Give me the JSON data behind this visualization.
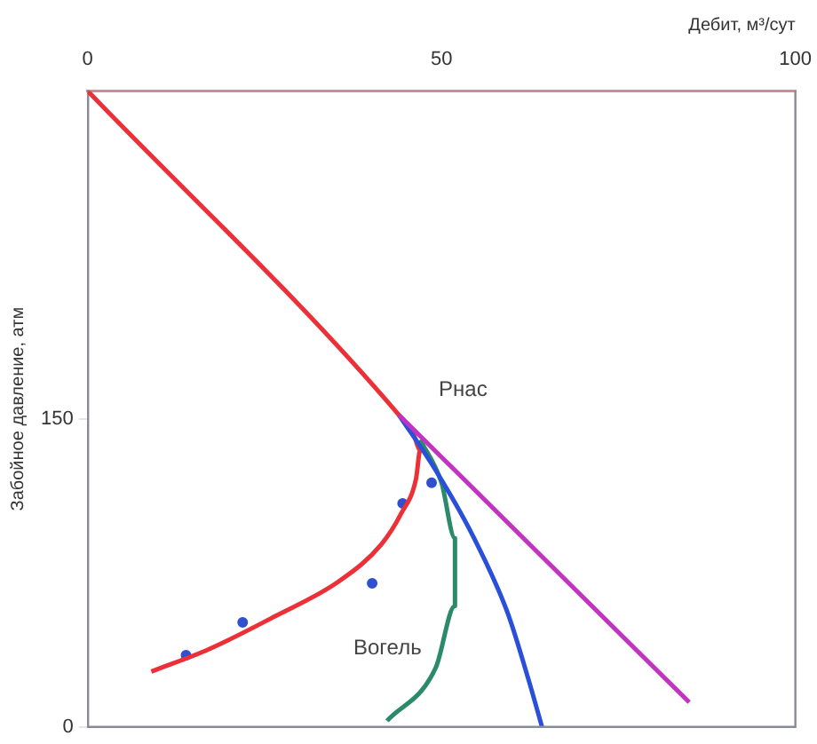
{
  "chart_data": {
    "type": "line",
    "xlabel": "Дебит, м³/сут",
    "ylabel": "Забойное давление, атм",
    "xlim": [
      0,
      100
    ],
    "xticks": [
      0,
      50,
      100
    ],
    "ylim": [
      0,
      310
    ],
    "yticks": [
      0,
      150
    ],
    "grid": false,
    "legend": false,
    "series": [
      {
        "color": "#c233c2",
        "x": [
          44,
          85
        ],
        "values": [
          152,
          12
        ]
      },
      {
        "color": "#2a4fd8",
        "x": [
          44,
          49.2,
          54.6,
          59.3,
          62.3,
          64.2
        ],
        "values": [
          152,
          125,
          92,
          56,
          23,
          0
        ]
      },
      {
        "color": "#2a8a6a",
        "x": [
          47,
          50,
          51.9,
          51.9,
          49.2,
          42.3
        ],
        "values": [
          140,
          119,
          92,
          59,
          29,
          3
        ]
      },
      {
        "color": "#ec3038",
        "x": [
          0,
          44,
          46,
          47,
          46.4,
          44.3,
          41.5,
          35.5,
          26.5,
          17.2,
          9
        ],
        "values": [
          310,
          152,
          143,
          135,
          121,
          104,
          89,
          71,
          54,
          38,
          27
        ]
      },
      {
        "type": "scatter",
        "marker": "circle",
        "color": "#3050d0",
        "x": [
          13.9,
          21.9,
          40.2,
          44.5,
          48.6
        ],
        "values": [
          35,
          51,
          70,
          109,
          119
        ]
      }
    ],
    "annotations": [
      {
        "text": "Рнас",
        "x": 44,
        "y": 152
      },
      {
        "text": "Вогель",
        "x": 51.9,
        "y": 59
      }
    ]
  }
}
